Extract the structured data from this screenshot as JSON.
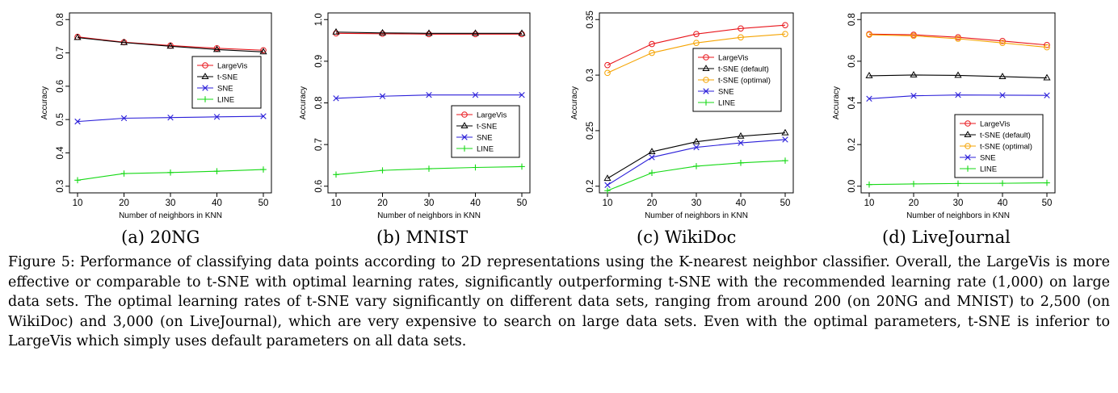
{
  "figure": {
    "label": "Figure 5:",
    "caption": "Performance of classifying data points according to 2D representations using the K-nearest neighbor classifier. Overall, the LargeVis is more effective or comparable to t-SNE with optimal learning rates, significantly outperforming t-SNE with the recommended learning rate (1,000) on large data sets. The optimal learning rates of t-SNE vary significantly on different data sets, ranging from around 200 (on 20NG and MNIST) to 2,500 (on WikiDoc) and 3,000 (on LiveJournal), which are very expensive to search on large data sets. Even with the optimal parameters, t-SNE is inferior to LargeVis which simply uses default parameters on all data sets."
  },
  "chart_data": [
    {
      "type": "line",
      "subcaption": "(a) 20NG",
      "xlabel": "Number of neighbors in KNN",
      "ylabel": "Accuracy",
      "x": [
        10,
        20,
        30,
        40,
        50
      ],
      "xlim": [
        10,
        50
      ],
      "ylim": [
        0.3,
        0.8
      ],
      "yticks": [
        0.3,
        0.4,
        0.5,
        0.6,
        0.7,
        0.8
      ],
      "legend_position": "right",
      "series": [
        {
          "name": "LargeVis",
          "color": "#e8151b",
          "marker": "circle",
          "values": [
            0.748,
            0.732,
            0.722,
            0.714,
            0.708
          ]
        },
        {
          "name": "t-SNE",
          "color": "#000000",
          "marker": "triangle",
          "values": [
            0.746,
            0.731,
            0.72,
            0.71,
            0.703
          ]
        },
        {
          "name": "SNE",
          "color": "#2b1fd9",
          "marker": "x",
          "values": [
            0.494,
            0.504,
            0.506,
            0.508,
            0.51
          ]
        },
        {
          "name": "LINE",
          "color": "#15d915",
          "marker": "plus",
          "values": [
            0.318,
            0.338,
            0.341,
            0.345,
            0.35
          ]
        }
      ]
    },
    {
      "type": "line",
      "subcaption": "(b) MNIST",
      "xlabel": "Number of neighbors in KNN",
      "ylabel": "Accuracy",
      "x": [
        10,
        20,
        30,
        40,
        50
      ],
      "xlim": [
        10,
        50
      ],
      "ylim": [
        0.6,
        1.0
      ],
      "yticks": [
        0.6,
        0.7,
        0.8,
        0.9,
        1.0
      ],
      "legend_position": "bottom-right",
      "series": [
        {
          "name": "LargeVis",
          "color": "#e8151b",
          "marker": "circle",
          "values": [
            0.967,
            0.966,
            0.965,
            0.965,
            0.965
          ]
        },
        {
          "name": "t-SNE",
          "color": "#000000",
          "marker": "triangle",
          "values": [
            0.97,
            0.968,
            0.967,
            0.967,
            0.967
          ]
        },
        {
          "name": "SNE",
          "color": "#2b1fd9",
          "marker": "x",
          "values": [
            0.811,
            0.816,
            0.819,
            0.819,
            0.819
          ]
        },
        {
          "name": "LINE",
          "color": "#15d915",
          "marker": "plus",
          "values": [
            0.628,
            0.638,
            0.642,
            0.645,
            0.647
          ]
        }
      ]
    },
    {
      "type": "line",
      "subcaption": "(c) WikiDoc",
      "xlabel": "Number of neighbors in KNN",
      "ylabel": "Accuracy",
      "x": [
        10,
        20,
        30,
        40,
        50
      ],
      "xlim": [
        10,
        50
      ],
      "ylim": [
        0.2,
        0.35
      ],
      "yticks": [
        0.2,
        0.25,
        0.3,
        0.35
      ],
      "legend_position": "right",
      "series": [
        {
          "name": "LargeVis",
          "color": "#e8151b",
          "marker": "circle",
          "values": [
            0.309,
            0.328,
            0.337,
            0.342,
            0.345
          ]
        },
        {
          "name": "t-SNE (default)",
          "color": "#000000",
          "marker": "triangle",
          "values": [
            0.207,
            0.231,
            0.24,
            0.245,
            0.248
          ]
        },
        {
          "name": "t-SNE (optimal)",
          "color": "#f5a300",
          "marker": "circle",
          "values": [
            0.302,
            0.32,
            0.329,
            0.334,
            0.337
          ]
        },
        {
          "name": "SNE",
          "color": "#2b1fd9",
          "marker": "x",
          "values": [
            0.201,
            0.226,
            0.235,
            0.239,
            0.242
          ]
        },
        {
          "name": "LINE",
          "color": "#15d915",
          "marker": "plus",
          "values": [
            0.196,
            0.212,
            0.218,
            0.221,
            0.223
          ]
        }
      ]
    },
    {
      "type": "line",
      "subcaption": "(d) LiveJournal",
      "xlabel": "Number of neighbors in KNN",
      "ylabel": "Accuracy",
      "x": [
        10,
        20,
        30,
        40,
        50
      ],
      "xlim": [
        10,
        50
      ],
      "ylim": [
        0.0,
        0.8
      ],
      "yticks": [
        0.0,
        0.2,
        0.4,
        0.6,
        0.8
      ],
      "legend_position": "bottom-right",
      "series": [
        {
          "name": "LargeVis",
          "color": "#e8151b",
          "marker": "circle",
          "values": [
            0.73,
            0.727,
            0.715,
            0.697,
            0.678
          ]
        },
        {
          "name": "t-SNE (default)",
          "color": "#000000",
          "marker": "triangle",
          "values": [
            0.53,
            0.534,
            0.532,
            0.526,
            0.52
          ]
        },
        {
          "name": "t-SNE (optimal)",
          "color": "#f5a300",
          "marker": "circle",
          "values": [
            0.727,
            0.722,
            0.708,
            0.688,
            0.667
          ]
        },
        {
          "name": "SNE",
          "color": "#2b1fd9",
          "marker": "x",
          "values": [
            0.42,
            0.434,
            0.438,
            0.437,
            0.436
          ]
        },
        {
          "name": "LINE",
          "color": "#15d915",
          "marker": "plus",
          "values": [
            0.008,
            0.011,
            0.013,
            0.014,
            0.016
          ]
        }
      ]
    }
  ]
}
